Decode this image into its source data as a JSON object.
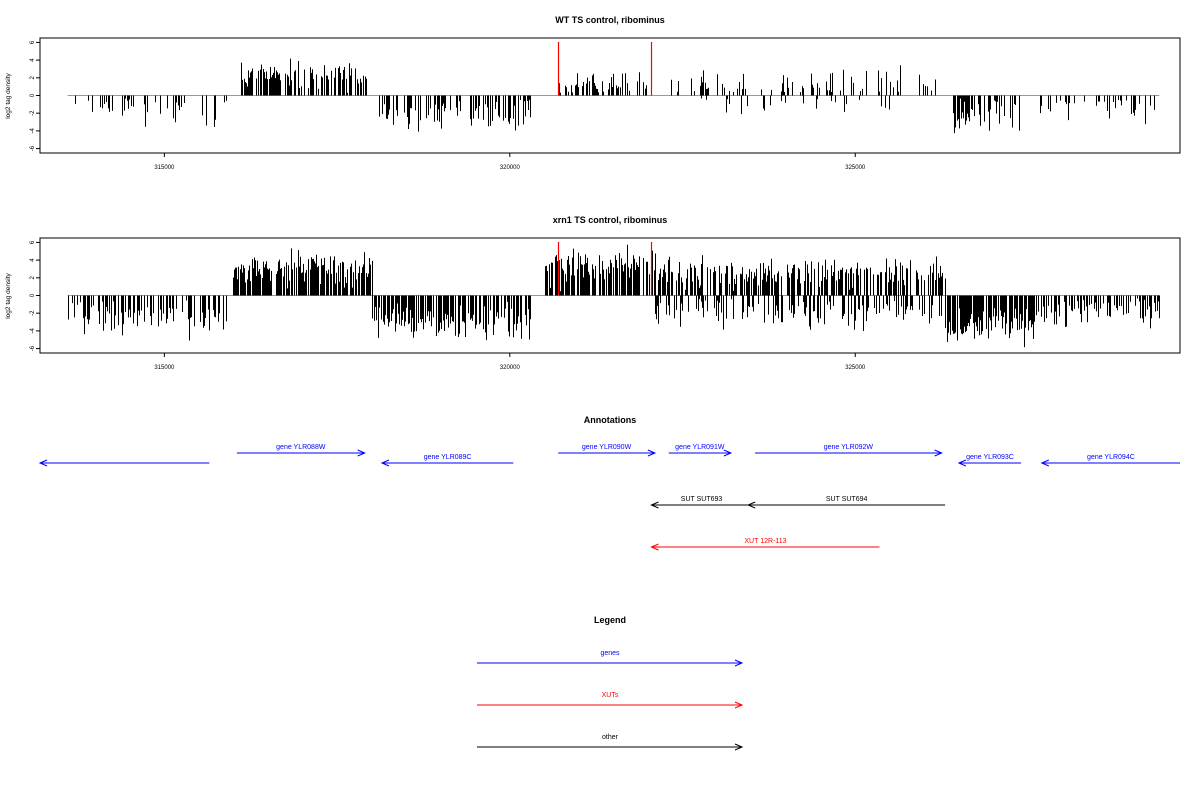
{
  "chart_data": [
    {
      "type": "bar",
      "title": "WT TS control, ribominus",
      "ylabel": "log2 tag density",
      "xlabel": "",
      "xlim": [
        313200,
        329700
      ],
      "ylim": [
        -6.5,
        6.5
      ],
      "x_ticks": [
        315000,
        320000,
        325000
      ],
      "x_tick_labels": [
        "315000",
        "320000",
        "325000"
      ],
      "y_ticks": [
        6,
        4,
        2,
        0,
        -2,
        -4,
        -6
      ],
      "y_tick_labels": [
        "6",
        "4",
        "2",
        "0",
        "-2",
        "-4",
        "-6"
      ],
      "grid": false,
      "density_segments": [
        {
          "x_start": 313600,
          "x_end": 315900,
          "sign": -1,
          "mean": 1.6,
          "spread": 1.4,
          "bars": 40,
          "seed": 11
        },
        {
          "x_start": 316100,
          "x_end": 317950,
          "sign": 1,
          "mean": 1.9,
          "spread": 1.3,
          "bars": 140,
          "seed": 12
        },
        {
          "x_start": 318100,
          "x_end": 320300,
          "sign": -1,
          "mean": 2.0,
          "spread": 1.3,
          "bars": 95,
          "seed": 13
        },
        {
          "x_start": 320700,
          "x_end": 322100,
          "sign": 1,
          "mean": 1.1,
          "spread": 1.3,
          "bars": 55,
          "seed": 14
        },
        {
          "x_start": 322200,
          "x_end": 326200,
          "sign": 1,
          "mean": 1.2,
          "spread": 1.2,
          "bars": 80,
          "seed": 15
        },
        {
          "x_start": 322700,
          "x_end": 325700,
          "sign": -1,
          "mean": 0.9,
          "spread": 0.8,
          "bars": 25,
          "seed": 16
        },
        {
          "x_start": 326400,
          "x_end": 327400,
          "sign": -1,
          "mean": 1.8,
          "spread": 1.5,
          "bars": 55,
          "seed": 17
        },
        {
          "x_start": 327650,
          "x_end": 329400,
          "sign": -1,
          "mean": 1.2,
          "spread": 1.2,
          "bars": 35,
          "seed": 18
        }
      ],
      "highlight_x": [
        320700,
        322050
      ],
      "highlight_color": "#ff0000"
    },
    {
      "type": "bar",
      "title": "xrn1 TS control, ribominus",
      "ylabel": "log2 tag density",
      "xlabel": "",
      "xlim": [
        313200,
        329700
      ],
      "ylim": [
        -6.5,
        6.5
      ],
      "x_ticks": [
        315000,
        320000,
        325000
      ],
      "x_tick_labels": [
        "315000",
        "320000",
        "325000"
      ],
      "y_ticks": [
        6,
        4,
        2,
        0,
        -2,
        -4,
        -6
      ],
      "y_tick_labels": [
        "6",
        "4",
        "2",
        "0",
        "-2",
        "-4",
        "-6"
      ],
      "grid": false,
      "density_segments": [
        {
          "x_start": 313600,
          "x_end": 315900,
          "sign": -1,
          "mean": 2.3,
          "spread": 1.4,
          "bars": 95,
          "seed": 21
        },
        {
          "x_start": 316000,
          "x_end": 318000,
          "sign": 1,
          "mean": 2.6,
          "spread": 1.4,
          "bars": 210,
          "seed": 22
        },
        {
          "x_start": 318000,
          "x_end": 320300,
          "sign": -1,
          "mean": 2.7,
          "spread": 1.5,
          "bars": 190,
          "seed": 23
        },
        {
          "x_start": 320500,
          "x_end": 322100,
          "sign": 1,
          "mean": 2.8,
          "spread": 1.6,
          "bars": 170,
          "seed": 24
        },
        {
          "x_start": 322100,
          "x_end": 326300,
          "sign": 1,
          "mean": 2.3,
          "spread": 1.3,
          "bars": 260,
          "seed": 25
        },
        {
          "x_start": 322100,
          "x_end": 326300,
          "sign": -1,
          "mean": 1.9,
          "spread": 1.3,
          "bars": 150,
          "seed": 26
        },
        {
          "x_start": 326300,
          "x_end": 327600,
          "sign": -1,
          "mean": 3.0,
          "spread": 1.6,
          "bars": 150,
          "seed": 27
        },
        {
          "x_start": 327600,
          "x_end": 329400,
          "sign": -1,
          "mean": 1.8,
          "spread": 1.2,
          "bars": 80,
          "seed": 28
        }
      ],
      "highlight_x": [
        320700,
        322050
      ],
      "highlight_color": "#ff0000"
    }
  ],
  "annotations": {
    "title": "Annotations",
    "items": [
      {
        "label": "",
        "x_start": 313200,
        "x_end": 315650,
        "strand": "-",
        "color": "#0000ff"
      },
      {
        "label": "gene YLR088W",
        "x_start": 316050,
        "x_end": 317900,
        "strand": "+",
        "color": "#0000ff"
      },
      {
        "label": "gene YLR089C",
        "x_start": 318150,
        "x_end": 320050,
        "strand": "-",
        "color": "#0000ff"
      },
      {
        "label": "gene YLR090W",
        "x_start": 320700,
        "x_end": 322100,
        "strand": "+",
        "color": "#0000ff"
      },
      {
        "label": "gene YLR091W",
        "x_start": 322300,
        "x_end": 323200,
        "strand": "+",
        "color": "#0000ff"
      },
      {
        "label": "gene YLR092W",
        "x_start": 323550,
        "x_end": 326250,
        "strand": "+",
        "color": "#0000ff"
      },
      {
        "label": "gene YLR093C",
        "x_start": 326500,
        "x_end": 327400,
        "strand": "-",
        "color": "#0000ff"
      },
      {
        "label": "gene YLR094C",
        "x_start": 327700,
        "x_end": 329700,
        "strand": "-",
        "color": "#0000ff"
      },
      {
        "label": "SUT SUT693",
        "x_start": 322050,
        "x_end": 323500,
        "strand": "-",
        "color": "#000000"
      },
      {
        "label": "SUT SUT694",
        "x_start": 323450,
        "x_end": 326300,
        "strand": "-",
        "color": "#000000"
      },
      {
        "label": "XUT 12R-113",
        "x_start": 322050,
        "x_end": 325350,
        "strand": "-",
        "color": "#ff0000"
      }
    ]
  },
  "legend": {
    "title": "Legend",
    "entries": [
      {
        "label": "genes",
        "color": "#0000ff"
      },
      {
        "label": "XUTs",
        "color": "#ff0000"
      },
      {
        "label": "other",
        "color": "#000000"
      }
    ]
  }
}
